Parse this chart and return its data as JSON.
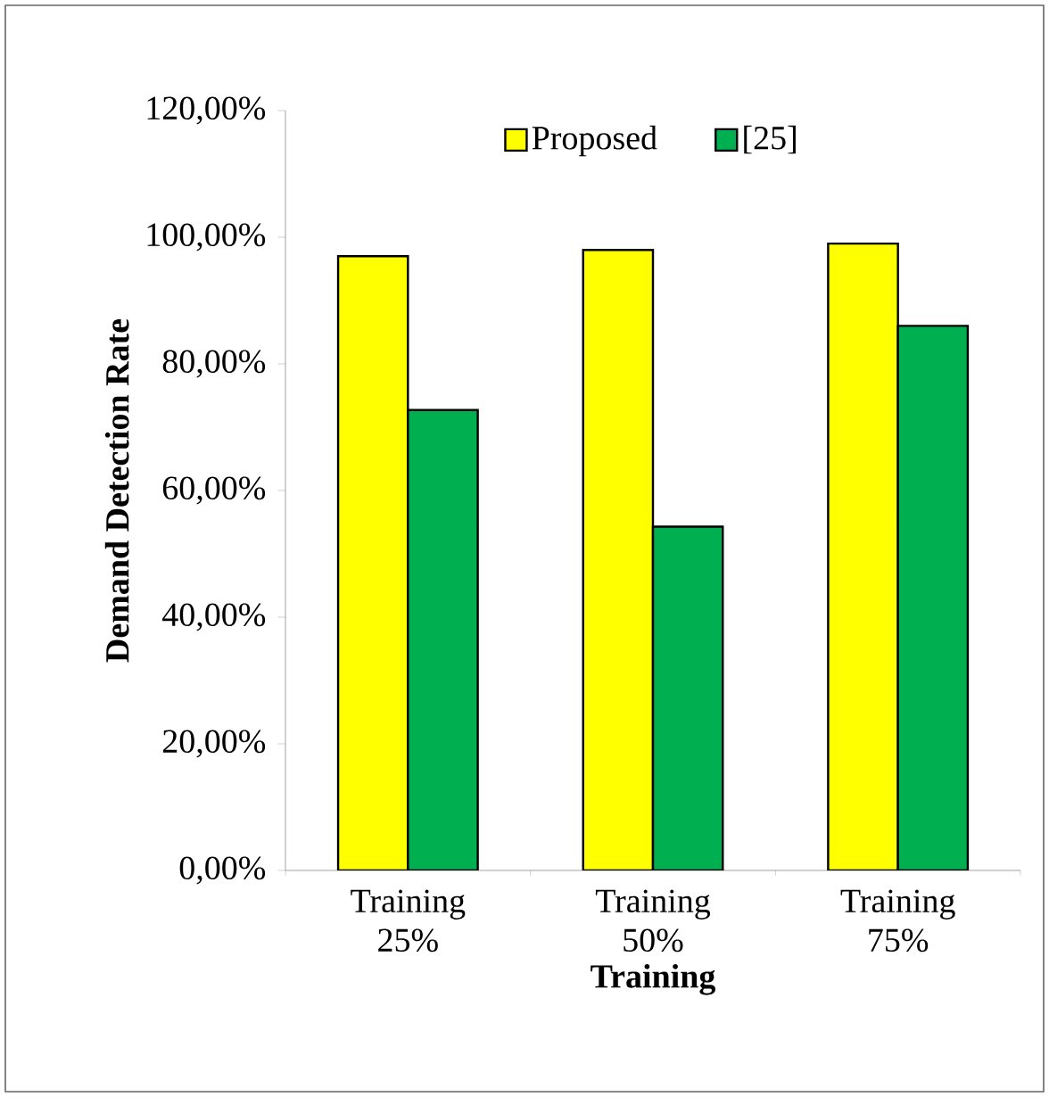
{
  "chart_data": {
    "type": "bar",
    "xlabel": "Training",
    "ylabel": "Demand Detection Rate",
    "categories": [
      "Training 25%",
      "Training 50%",
      "Training 75%"
    ],
    "series": [
      {
        "name": "Proposed",
        "color": "#ffff00",
        "values": [
          97.0,
          98.0,
          99.0
        ]
      },
      {
        "name": "[25]",
        "color": "#00b050",
        "values": [
          72.7,
          54.3,
          86.0
        ]
      }
    ],
    "ylim": [
      0,
      120
    ],
    "yticks": [
      {
        "value": 0,
        "label": "0,00%"
      },
      {
        "value": 20,
        "label": "20,00%"
      },
      {
        "value": 40,
        "label": "40,00%"
      },
      {
        "value": 60,
        "label": "60,00%"
      },
      {
        "value": 80,
        "label": "80,00%"
      },
      {
        "value": 100,
        "label": "100,00%"
      },
      {
        "value": 120,
        "label": "120,00%"
      }
    ],
    "grid": false,
    "legend": "top"
  }
}
